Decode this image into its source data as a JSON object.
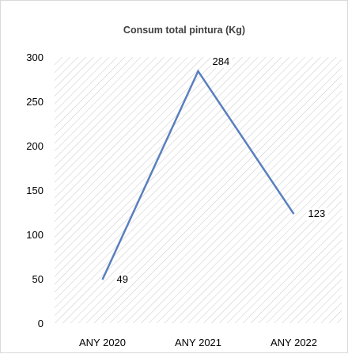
{
  "chart_data": {
    "type": "line",
    "title": "Consum total  pintura (Kg)",
    "xlabel": "",
    "ylabel": "",
    "categories": [
      "ANY 2020",
      "ANY 2021",
      "ANY 2022"
    ],
    "values": [
      49,
      284,
      123
    ],
    "ylim": [
      0,
      300
    ],
    "yticks": [
      0,
      50,
      100,
      150,
      200,
      250,
      300
    ],
    "yticks_text": [
      "0",
      "50",
      "100",
      "150",
      "200",
      "250",
      "300"
    ],
    "values_text": [
      "49",
      "284",
      "123"
    ],
    "grid": false,
    "plot_background": "diagonal hatch",
    "line_color": "#5a7fbf",
    "hatch_color": "#c8c8c8",
    "text_color": "#000000",
    "title_color": "#404040"
  }
}
